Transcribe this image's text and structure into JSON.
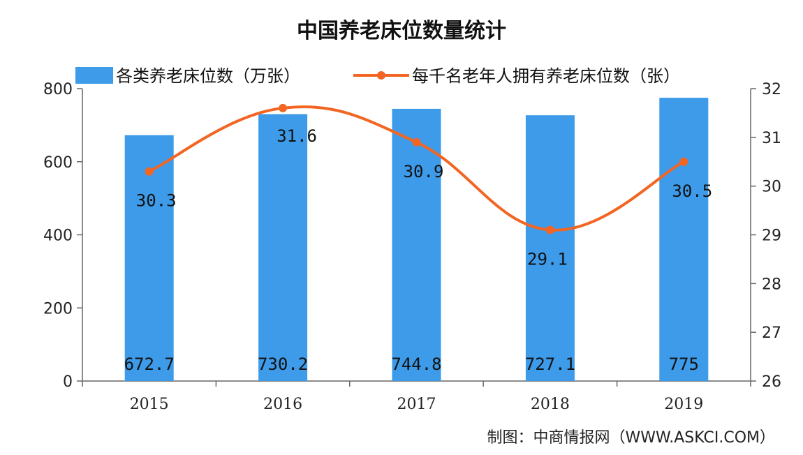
{
  "chart_data": {
    "type": "bar",
    "title": "中国养老床位数量统计",
    "categories": [
      "2015",
      "2016",
      "2017",
      "2018",
      "2019"
    ],
    "series": [
      {
        "name": "各类养老床位数（万张）",
        "type": "bar",
        "axis": "left",
        "values": [
          672.7,
          730.2,
          744.8,
          727.1,
          775
        ],
        "labels": [
          "672.7",
          "730.2",
          "744.8",
          "727.1",
          "775"
        ],
        "color": "#3d9be9"
      },
      {
        "name": "每千名老年人拥有养老床位数（张）",
        "type": "line",
        "axis": "right",
        "values": [
          30.3,
          31.6,
          30.9,
          29.1,
          30.5
        ],
        "labels": [
          "30.3",
          "31.6",
          "30.9",
          "29.1",
          "30.5"
        ],
        "color": "#f26522"
      }
    ],
    "y_left": {
      "range": [
        0,
        800
      ],
      "ticks": [
        "0",
        "200",
        "400",
        "600",
        "800"
      ]
    },
    "y_right": {
      "range": [
        26,
        32
      ],
      "ticks": [
        "26",
        "27",
        "28",
        "29",
        "30",
        "31",
        "32"
      ]
    },
    "legend_position": "top",
    "grid": false
  },
  "source": "制图：中商情报网（WWW.ASKCI.COM）"
}
